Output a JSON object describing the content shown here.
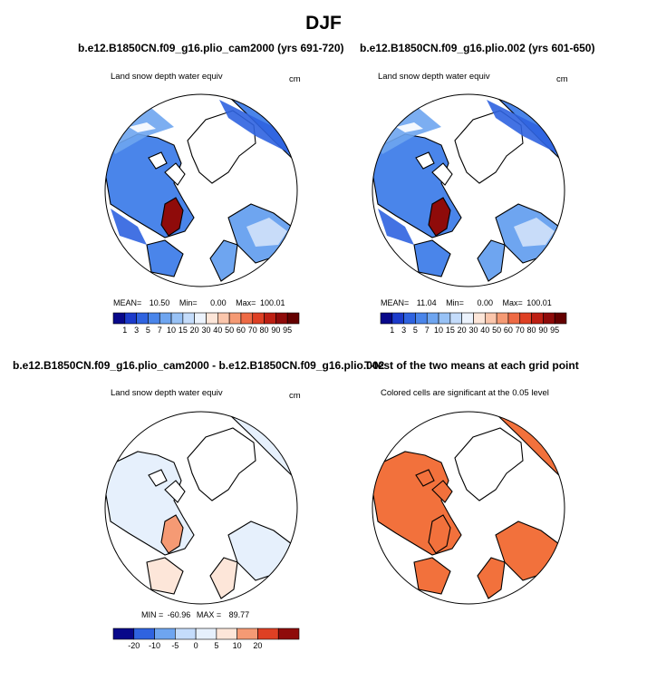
{
  "figure_title": "DJF",
  "panels": [
    {
      "title": "b.e12.B1850CN.f09_g16.plio_cam2000 (yrs 691-720)",
      "variable": "Land snow depth water equiv",
      "units": "cm",
      "stats": {
        "mean_label": "MEAN=",
        "mean": "10.50",
        "min_label": "Min=",
        "min": "0.00",
        "max_label": "Max=",
        "max": "100.01"
      }
    },
    {
      "title": "b.e12.B1850CN.f09_g16.plio.002 (yrs 601-650)",
      "variable": "Land snow depth water equiv",
      "units": "cm",
      "stats": {
        "mean_label": "MEAN=",
        "mean": "11.04",
        "min_label": "Min=",
        "min": "0.00",
        "max_label": "Max=",
        "max": "100.01"
      }
    },
    {
      "title": "b.e12.B1850CN.f09_g16.plio_cam2000 - b.e12.B1850CN.f09_g16.plio.002",
      "variable": "Land snow depth water equiv",
      "units": "cm",
      "stats": {
        "min_label": "MIN =",
        "min": "-60.96",
        "max_label": "MAX =",
        "max": "89.77"
      }
    },
    {
      "title": "T-test of the two means at each grid point",
      "subtitle": "Colored cells are significant at the 0.05 level"
    }
  ],
  "chart_data": [
    {
      "type": "heatmap",
      "projection": "north-polar-stereographic",
      "title": "b.e12.B1850CN.f09_g16.plio_cam2000 (yrs 691-720)",
      "field": "Land snow depth water equiv",
      "units": "cm",
      "colorbar": {
        "levels": [
          "1",
          "3",
          "5",
          "7",
          "10",
          "15",
          "20",
          "30",
          "40",
          "50",
          "60",
          "70",
          "80",
          "90",
          "95"
        ],
        "colors": [
          "#08088a",
          "#1c3bcb",
          "#2f63e0",
          "#4a85ea",
          "#6ea5f0",
          "#98c2f6",
          "#c4dcfb",
          "#ecf3fd",
          "#fde6d9",
          "#fbc6ac",
          "#f59a74",
          "#ee6a45",
          "#de4024",
          "#bd1f13",
          "#8f0b0a",
          "#640000"
        ]
      },
      "mean": 10.5,
      "min": 0.0,
      "max": 100.01
    },
    {
      "type": "heatmap",
      "projection": "north-polar-stereographic",
      "title": "b.e12.B1850CN.f09_g16.plio.002 (yrs 601-650)",
      "field": "Land snow depth water equiv",
      "units": "cm",
      "colorbar": {
        "levels": [
          "1",
          "3",
          "5",
          "7",
          "10",
          "15",
          "20",
          "30",
          "40",
          "50",
          "60",
          "70",
          "80",
          "90",
          "95"
        ],
        "colors": [
          "#08088a",
          "#1c3bcb",
          "#2f63e0",
          "#4a85ea",
          "#6ea5f0",
          "#98c2f6",
          "#c4dcfb",
          "#ecf3fd",
          "#fde6d9",
          "#fbc6ac",
          "#f59a74",
          "#ee6a45",
          "#de4024",
          "#bd1f13",
          "#8f0b0a",
          "#640000"
        ]
      },
      "mean": 11.04,
      "min": 0.0,
      "max": 100.01
    },
    {
      "type": "heatmap",
      "projection": "north-polar-stereographic",
      "title": "b.e12.B1850CN.f09_g16.plio_cam2000 - b.e12.B1850CN.f09_g16.plio.002",
      "field": "Land snow depth water equiv",
      "units": "cm",
      "colorbar": {
        "levels": [
          "-20",
          "-10",
          "-5",
          "0",
          "5",
          "10",
          "20"
        ],
        "tick_labels_shown": [
          "-20",
          "-10",
          "-5",
          "0",
          "5",
          "10",
          "20"
        ],
        "colors": [
          "#08088a",
          "#2f63e0",
          "#6ea5f0",
          "#c4dcfb",
          "#e6f0fc",
          "#fde6d9",
          "#f59a74",
          "#de4024",
          "#8f0b0a"
        ]
      },
      "min": -60.96,
      "max": 89.77
    },
    {
      "type": "heatmap",
      "projection": "north-polar-stereographic",
      "title": "T-test of the two means at each grid point",
      "subtitle": "Colored cells are significant at the 0.05 level",
      "significance_level": 0.05,
      "significant_color": "#f2713c"
    }
  ],
  "colors": {
    "ocean": "#ffffff",
    "coast": "#000000",
    "sig": "#f2713c"
  }
}
